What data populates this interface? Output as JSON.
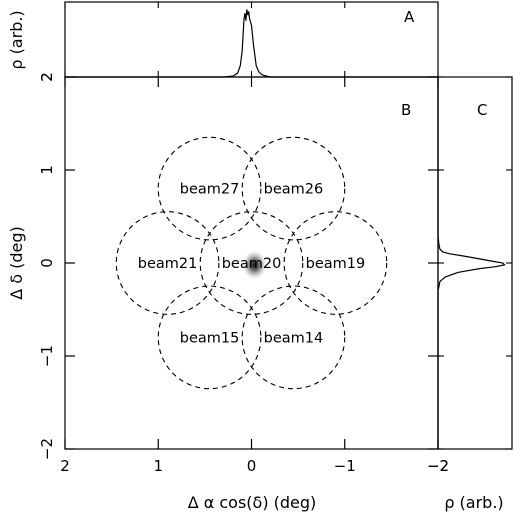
{
  "chart_data": [
    {
      "panel": "A",
      "type": "line",
      "label": "A",
      "ylabel": "ρ (arb.)",
      "x_range": [
        2,
        -2
      ],
      "y_range": [
        2,
        2.8
      ],
      "y_ticks": [
        2
      ],
      "y_tick_labels": [
        "2"
      ],
      "x": [
        2.0,
        0.3,
        0.2,
        0.15,
        0.12,
        0.1,
        0.09,
        0.08,
        0.07,
        0.06,
        0.05,
        0.04,
        0.03,
        0.02,
        0.0,
        -0.02,
        -0.05,
        -0.08,
        -0.12,
        -0.2,
        -2.0
      ],
      "y": [
        2.0,
        2.0,
        2.01,
        2.04,
        2.12,
        2.28,
        2.45,
        2.62,
        2.68,
        2.6,
        2.72,
        2.66,
        2.7,
        2.62,
        2.55,
        2.35,
        2.12,
        2.05,
        2.02,
        2.0,
        2.0
      ]
    },
    {
      "panel": "B",
      "type": "scatter",
      "label": "B",
      "xlabel": "Δ α cos(δ)  (deg)",
      "ylabel": "Δ δ (deg)",
      "x_range": [
        2,
        -2
      ],
      "y_range": [
        -2,
        2
      ],
      "x_ticks": [
        2,
        1,
        0,
        -1,
        -2
      ],
      "x_tick_labels": [
        "2",
        "1",
        "0",
        "−1",
        "−2"
      ],
      "y_ticks": [
        -2,
        -1,
        0,
        1,
        2
      ],
      "y_tick_labels": [
        "−2",
        "−1",
        "0",
        "1",
        "2"
      ],
      "beam_radius": 0.55,
      "source": {
        "x": 0.0,
        "y": 0.0
      },
      "beams": [
        {
          "name": "beam27",
          "x": 0.45,
          "y": 0.8
        },
        {
          "name": "beam26",
          "x": -0.45,
          "y": 0.8
        },
        {
          "name": "beam21",
          "x": 0.9,
          "y": 0.0
        },
        {
          "name": "beam20",
          "x": 0.0,
          "y": 0.0
        },
        {
          "name": "beam19",
          "x": -0.9,
          "y": 0.0
        },
        {
          "name": "beam15",
          "x": 0.45,
          "y": -0.8
        },
        {
          "name": "beam14",
          "x": -0.45,
          "y": -0.8
        }
      ]
    },
    {
      "panel": "C",
      "type": "line",
      "label": "C",
      "xlabel": "ρ (arb.)",
      "x_range": [
        -2,
        -2.8
      ],
      "x_ticks": [
        -2
      ],
      "x_tick_labels": [
        "−2"
      ],
      "y_range": [
        -2,
        2
      ],
      "y": [
        2.0,
        0.3,
        0.2,
        0.15,
        0.12,
        0.1,
        0.08,
        0.05,
        0.02,
        0.0,
        -0.02,
        -0.04,
        -0.06,
        -0.1,
        -0.15,
        -0.2,
        -0.3,
        -2.0
      ],
      "x": [
        -2.0,
        -2.0,
        -2.01,
        -2.02,
        -2.05,
        -2.12,
        -2.25,
        -2.42,
        -2.58,
        -2.7,
        -2.72,
        -2.62,
        -2.45,
        -2.22,
        -2.08,
        -2.02,
        -2.0,
        -2.0
      ]
    }
  ]
}
